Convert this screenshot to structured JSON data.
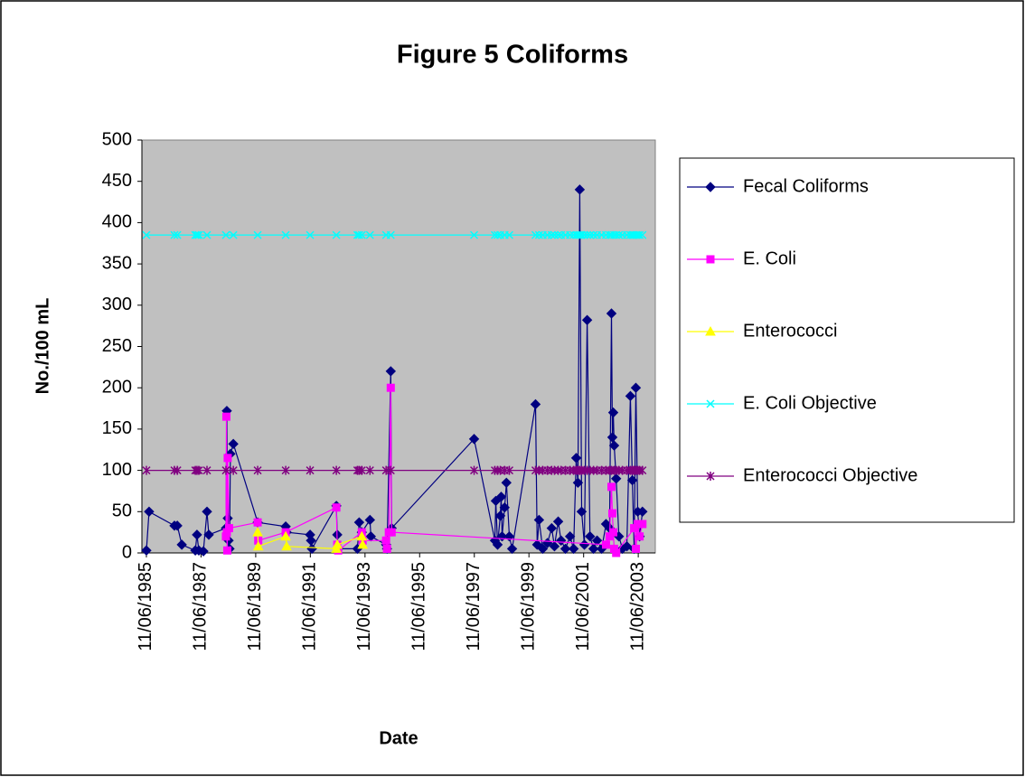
{
  "chart_data": {
    "type": "line",
    "title": "Figure 5 Coliforms",
    "x_label": "Date",
    "y_label": "No./100 mL",
    "xlim": [
      "1985-09-07",
      "2004-06-21"
    ],
    "xticks": [
      {
        "value": "1985-11-06",
        "label": "11/06/1985"
      },
      {
        "value": "1987-11-06",
        "label": "11/06/1987"
      },
      {
        "value": "1989-11-06",
        "label": "11/06/1989"
      },
      {
        "value": "1991-11-06",
        "label": "11/06/1991"
      },
      {
        "value": "1993-11-06",
        "label": "11/06/1993"
      },
      {
        "value": "1995-11-06",
        "label": "11/06/1995"
      },
      {
        "value": "1997-11-06",
        "label": "11/06/1997"
      },
      {
        "value": "1999-11-06",
        "label": "11/06/1999"
      },
      {
        "value": "2001-11-06",
        "label": "11/06/2001"
      },
      {
        "value": "2003-11-06",
        "label": "11/06/2003"
      }
    ],
    "ylim": [
      0,
      500
    ],
    "yticks": [
      0,
      50,
      100,
      150,
      200,
      250,
      300,
      350,
      400,
      450,
      500
    ],
    "grid": false,
    "plot_background": "#c0c0c0",
    "legend": "right",
    "series": [
      {
        "name": "Fecal Coliforms",
        "color": "#000080",
        "marker": "diamond",
        "x": [
          "1985-11-06",
          "1985-12-12",
          "1986-11-16",
          "1986-12-24",
          "1987-02-22",
          "1987-08-22",
          "1987-09-13",
          "1987-10-08",
          "1987-12-08",
          "1988-01-25",
          "1988-02-18",
          "1988-10-04",
          "1988-10-16",
          "1988-10-28",
          "1988-11-09",
          "1988-11-21",
          "1988-12-03",
          "1989-01-11",
          "1989-12-02",
          "1990-12-12",
          "1990-12-24",
          "1991-11-03",
          "1991-11-15",
          "1991-11-27",
          "1992-10-19",
          "1992-10-31",
          "1992-11-12",
          "1993-07-27",
          "1993-08-20",
          "1993-09-24",
          "1994-01-11",
          "1994-01-23",
          "1994-08-15",
          "1994-08-27",
          "1994-10-16",
          "1994-10-28",
          "1997-11-03",
          "1998-08-08",
          "1998-08-20",
          "1998-09-13",
          "1998-10-19",
          "1998-10-31",
          "1998-11-12",
          "1998-12-16",
          "1999-01-09",
          "1999-02-17",
          "1999-03-26",
          "2000-02-02",
          "2000-02-24",
          "2000-03-20",
          "2000-05-08",
          "2000-07-10",
          "2000-09-05",
          "2000-10-12",
          "2000-12-01",
          "2001-01-08",
          "2001-03-08",
          "2001-05-08",
          "2001-06-25",
          "2001-07-30",
          "2001-08-22",
          "2001-09-15",
          "2001-10-10",
          "2001-11-16",
          "2001-12-23",
          "2002-01-30",
          "2002-03-18",
          "2002-05-04",
          "2002-07-05",
          "2002-09-01",
          "2002-10-19",
          "2002-11-13",
          "2002-11-25",
          "2002-12-07",
          "2002-12-19",
          "2003-01-15",
          "2003-02-20",
          "2003-04-08",
          "2003-06-07",
          "2003-07-24",
          "2003-08-19",
          "2003-09-12",
          "2003-10-05",
          "2003-10-30",
          "2003-11-24",
          "2004-01-01"
        ],
        "values": [
          3,
          50,
          33,
          33,
          10,
          3,
          22,
          3,
          2,
          50,
          22,
          30,
          172,
          42,
          15,
          5,
          120,
          132,
          37,
          32,
          25,
          22,
          15,
          5,
          57,
          22,
          5,
          5,
          37,
          25,
          40,
          20,
          10,
          5,
          220,
          30,
          138,
          15,
          63,
          10,
          45,
          68,
          20,
          55,
          85,
          20,
          5,
          180,
          10,
          40,
          5,
          12,
          30,
          8,
          38,
          15,
          5,
          20,
          5,
          115,
          85,
          440,
          50,
          10,
          282,
          20,
          5,
          15,
          5,
          35,
          30,
          290,
          140,
          170,
          130,
          90,
          20,
          5,
          8,
          190,
          88,
          5,
          200,
          50,
          20,
          50
        ]
      },
      {
        "name": "E. Coli",
        "color": "#ff00ff",
        "marker": "square",
        "x": [
          "1988-10-04",
          "1988-10-10",
          "1988-10-16",
          "1988-10-22",
          "1988-10-28",
          "1988-11-15",
          "1989-12-02",
          "1989-12-10",
          "1990-12-12",
          "1992-10-19",
          "1992-10-31",
          "1992-11-12",
          "1993-09-24",
          "1993-10-05",
          "1994-08-15",
          "1994-08-27",
          "1994-09-20",
          "1994-10-16",
          "1994-10-28",
          "2002-09-01",
          "2002-10-19",
          "2002-11-13",
          "2002-11-25",
          "2002-12-07",
          "2002-12-19",
          "2003-01-15",
          "2003-09-12",
          "2003-10-05",
          "2003-10-30",
          "2003-11-24",
          "2004-01-01"
        ],
        "values": [
          20,
          165,
          25,
          3,
          115,
          30,
          37,
          15,
          25,
          55,
          10,
          3,
          25,
          15,
          15,
          5,
          25,
          200,
          25,
          10,
          20,
          80,
          48,
          25,
          5,
          0,
          30,
          5,
          35,
          20,
          35
        ]
      },
      {
        "name": "Enterococci",
        "color": "#ffff00",
        "marker": "triangle",
        "x": [
          "1989-12-02",
          "1989-12-10",
          "1990-12-12",
          "1990-12-24",
          "1992-10-19",
          "1992-10-31",
          "1993-09-24",
          "1993-10-05"
        ],
        "values": [
          25,
          8,
          20,
          8,
          5,
          10,
          20,
          10
        ]
      },
      {
        "name": "E. Coli Objective",
        "color": "#00ffff",
        "marker": "x",
        "x": [
          "1985-11-06",
          "1986-11-16",
          "1986-12-24",
          "1987-08-22",
          "1987-09-13",
          "1987-10-08",
          "1988-01-25",
          "1988-10-04",
          "1989-01-11",
          "1989-12-02",
          "1990-12-12",
          "1991-11-03",
          "1992-10-19",
          "1993-07-27",
          "1993-08-20",
          "1993-09-24",
          "1994-01-11",
          "1994-08-15",
          "1994-10-16",
          "1997-11-03",
          "1998-08-08",
          "1998-09-13",
          "1998-10-19",
          "1998-12-16",
          "1999-02-17",
          "2000-02-02",
          "2000-03-20",
          "2000-05-08",
          "2000-07-10",
          "2000-09-05",
          "2000-10-12",
          "2000-12-01",
          "2001-01-08",
          "2001-03-08",
          "2001-05-08",
          "2001-06-25",
          "2001-07-30",
          "2001-08-22",
          "2001-09-15",
          "2001-10-10",
          "2001-11-16",
          "2001-12-23",
          "2002-01-30",
          "2002-03-18",
          "2002-05-04",
          "2002-07-05",
          "2002-09-01",
          "2002-10-19",
          "2002-11-13",
          "2002-12-19",
          "2003-01-15",
          "2003-02-20",
          "2003-04-08",
          "2003-06-07",
          "2003-07-24",
          "2003-08-19",
          "2003-09-12",
          "2003-10-05",
          "2003-10-30",
          "2003-11-24",
          "2004-01-01"
        ],
        "values": [
          385,
          385,
          385,
          385,
          385,
          385,
          385,
          385,
          385,
          385,
          385,
          385,
          385,
          385,
          385,
          385,
          385,
          385,
          385,
          385,
          385,
          385,
          385,
          385,
          385,
          385,
          385,
          385,
          385,
          385,
          385,
          385,
          385,
          385,
          385,
          385,
          385,
          385,
          385,
          385,
          385,
          385,
          385,
          385,
          385,
          385,
          385,
          385,
          385,
          385,
          385,
          385,
          385,
          385,
          385,
          385,
          385,
          385,
          385,
          385,
          385
        ]
      },
      {
        "name": "Enterococci Objective",
        "color": "#800080",
        "marker": "star",
        "x": [
          "1985-11-06",
          "1986-11-16",
          "1986-12-24",
          "1987-08-22",
          "1987-09-13",
          "1987-10-08",
          "1988-01-25",
          "1988-10-04",
          "1989-01-11",
          "1989-12-02",
          "1990-12-12",
          "1991-11-03",
          "1992-10-19",
          "1993-07-27",
          "1993-08-20",
          "1993-09-24",
          "1994-01-11",
          "1994-08-15",
          "1994-10-16",
          "1997-11-03",
          "1998-08-08",
          "1998-09-13",
          "1998-10-19",
          "1998-12-16",
          "1999-02-17",
          "2000-02-02",
          "2000-03-20",
          "2000-05-08",
          "2000-07-10",
          "2000-09-05",
          "2000-10-12",
          "2000-12-01",
          "2001-01-08",
          "2001-03-08",
          "2001-05-08",
          "2001-06-25",
          "2001-07-30",
          "2001-08-22",
          "2001-09-15",
          "2001-10-10",
          "2001-11-16",
          "2001-12-23",
          "2002-01-30",
          "2002-03-18",
          "2002-05-04",
          "2002-07-05",
          "2002-09-01",
          "2002-10-19",
          "2002-11-13",
          "2002-12-19",
          "2003-01-15",
          "2003-02-20",
          "2003-04-08",
          "2003-06-07",
          "2003-07-24",
          "2003-08-19",
          "2003-09-12",
          "2003-10-05",
          "2003-10-30",
          "2003-11-24",
          "2004-01-01"
        ],
        "values": [
          100,
          100,
          100,
          100,
          100,
          100,
          100,
          100,
          100,
          100,
          100,
          100,
          100,
          100,
          100,
          100,
          100,
          100,
          100,
          100,
          100,
          100,
          100,
          100,
          100,
          100,
          100,
          100,
          100,
          100,
          100,
          100,
          100,
          100,
          100,
          100,
          100,
          100,
          100,
          100,
          100,
          100,
          100,
          100,
          100,
          100,
          100,
          100,
          100,
          100,
          100,
          100,
          100,
          100,
          100,
          100,
          100,
          100,
          100,
          100,
          100
        ]
      }
    ]
  }
}
